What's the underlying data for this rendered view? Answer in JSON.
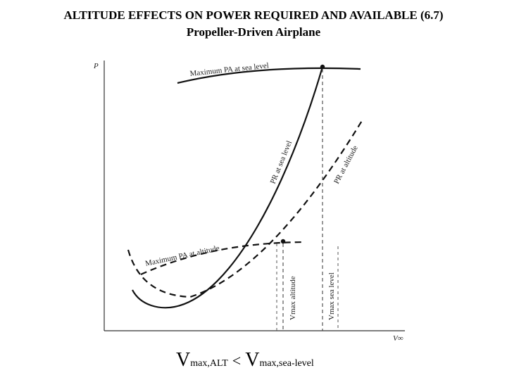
{
  "title": {
    "line1": "ALTITUDE EFFECTS ON POWER REQUIRED AND AVAILABLE (6.7)",
    "line2": "Propeller-Driven Airplane"
  },
  "axes": {
    "y_label": "P",
    "x_label": "V∞"
  },
  "curves": {
    "pa_sea_level": "Maximum PA at sea level",
    "pr_sea_level": "PR at sea level",
    "pr_altitude": "PR at altitude",
    "pa_altitude": "Maximum PA at altitude"
  },
  "markers": {
    "vmax_altitude": "Vmax altitude",
    "vmax_sea_level": "Vmax sea level"
  },
  "bottom_note": {
    "left_main": "V",
    "left_sub": "max,ALT",
    "relation": "<",
    "right_main": "V",
    "right_sub": "max,sea-level"
  }
}
